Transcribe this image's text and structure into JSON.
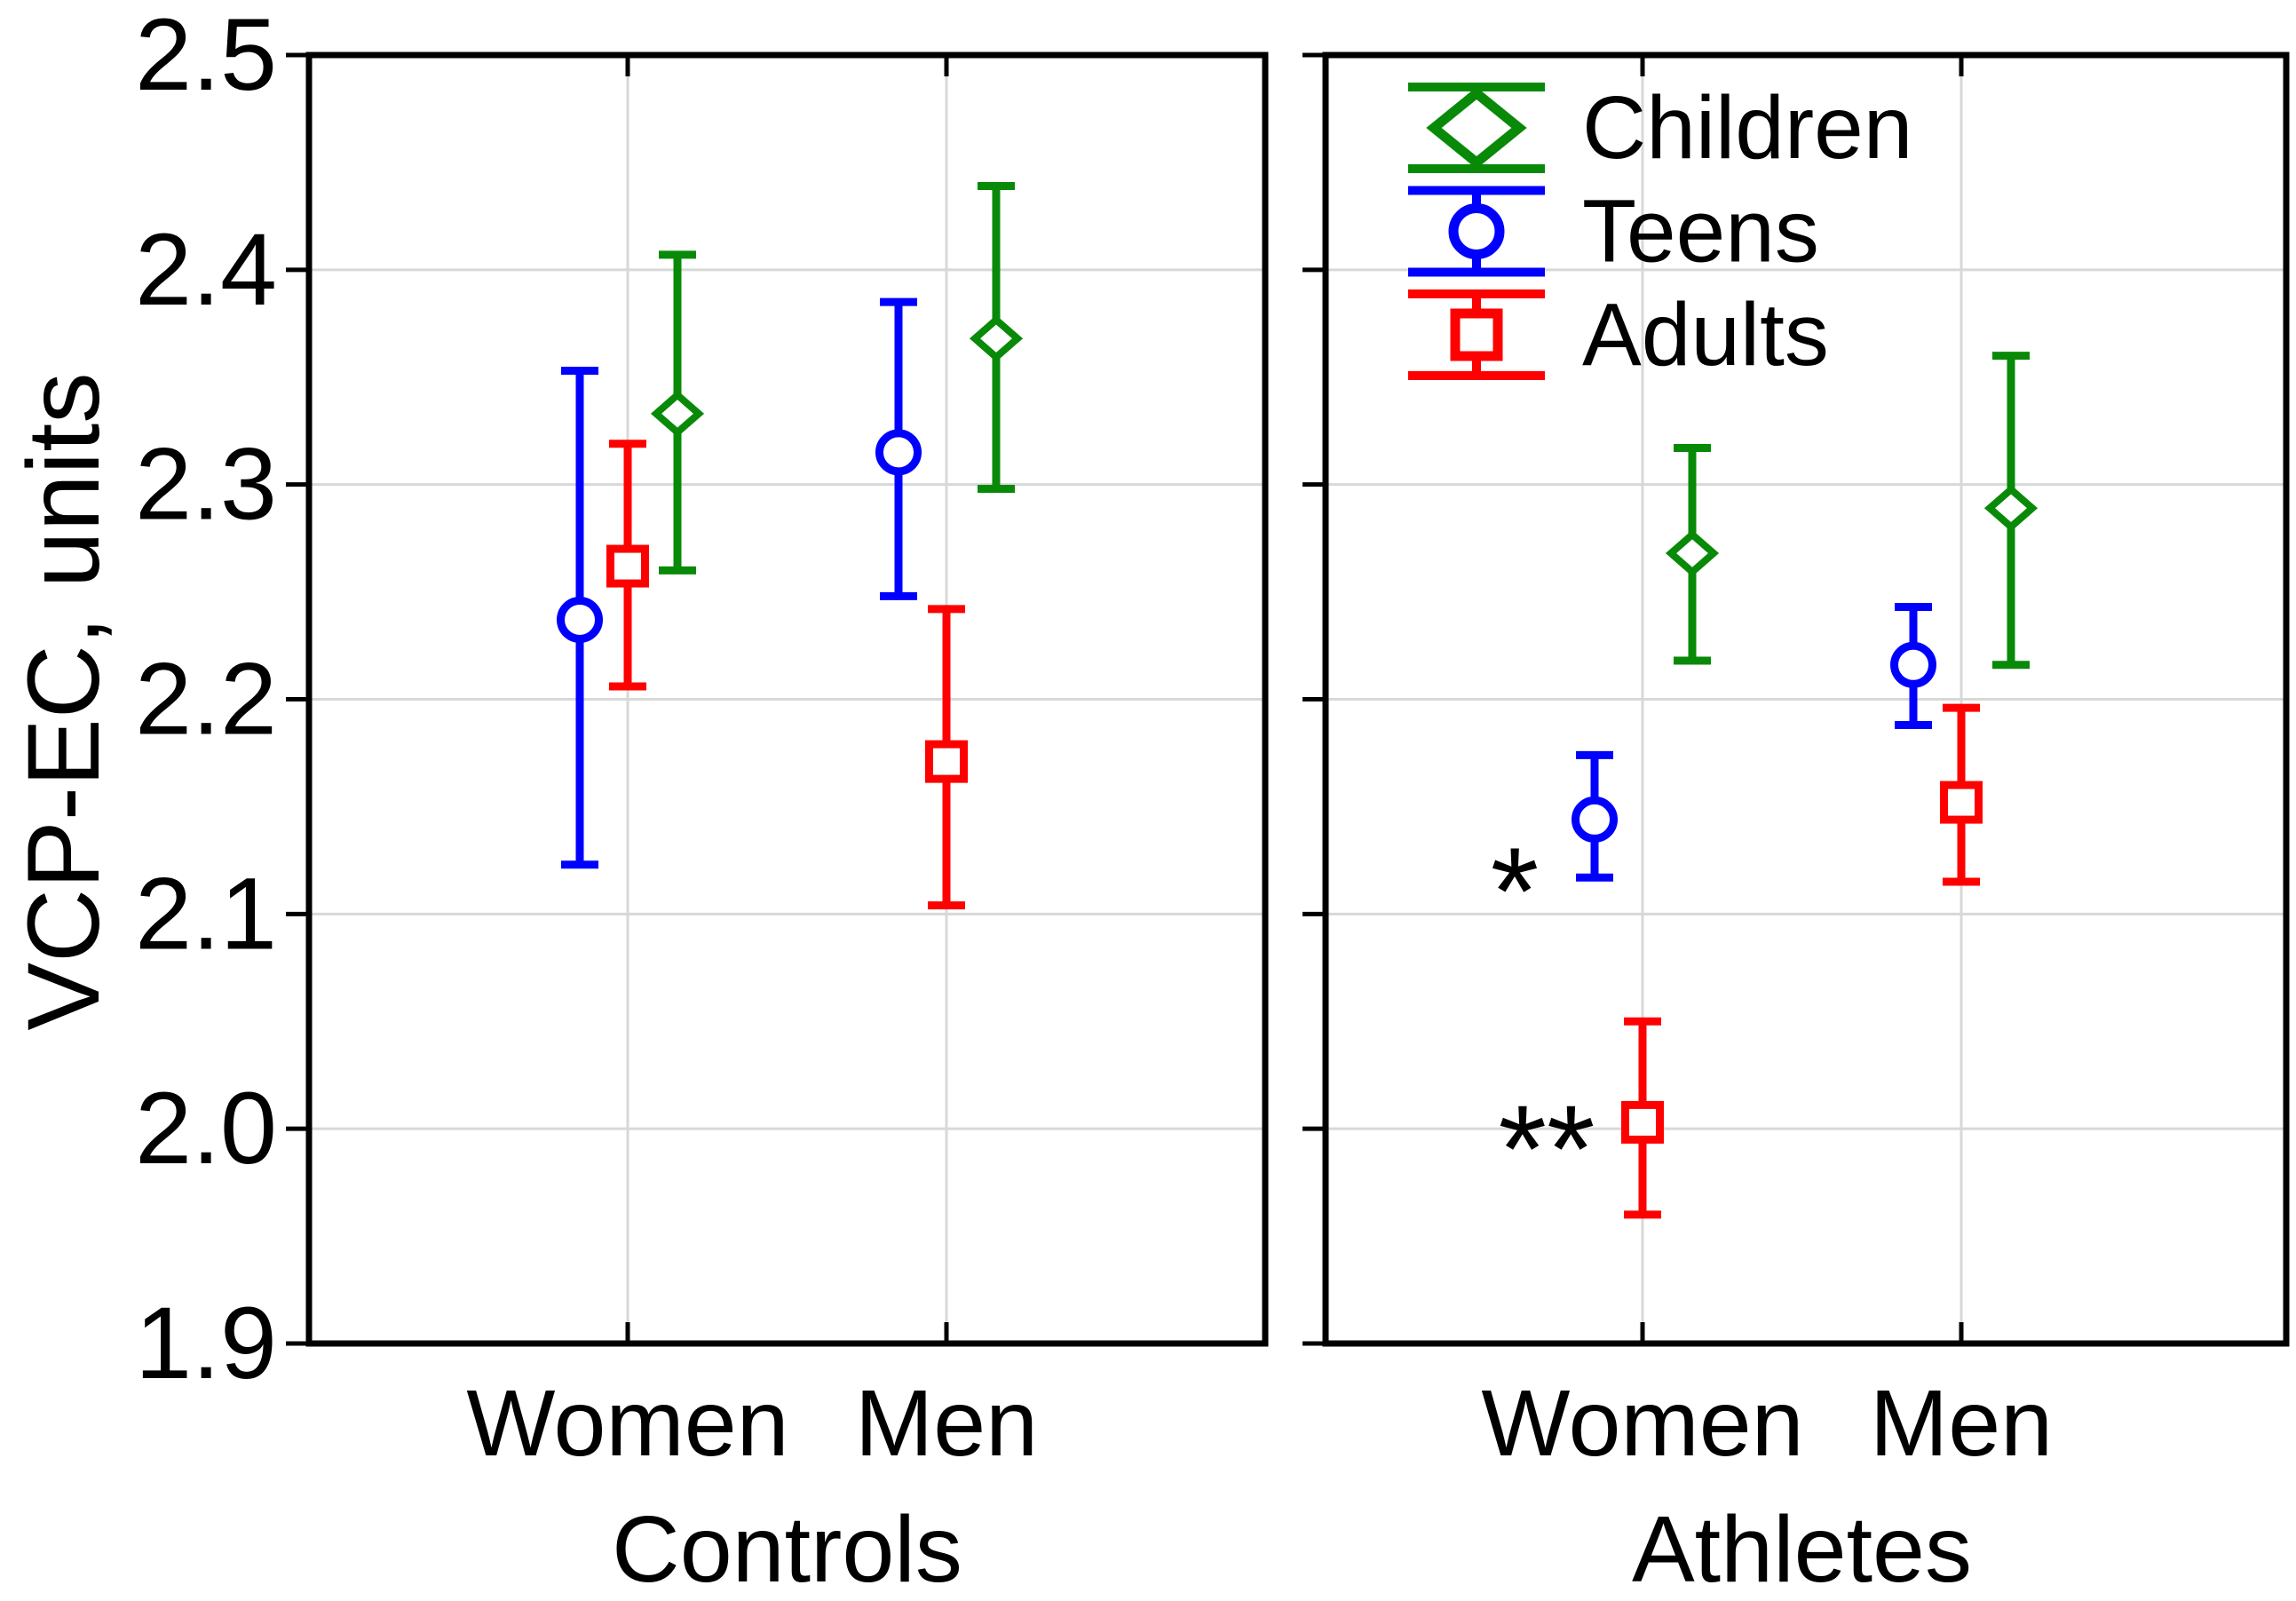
{
  "chart_data": {
    "type": "scatter",
    "subtype": "point-with-error-bars",
    "title": "",
    "ylabel": "VCP-EC, units",
    "ylim": [
      1.9,
      2.5
    ],
    "grid": true,
    "yticks": [
      {
        "value": 2.5,
        "label": "2.5"
      },
      {
        "value": 2.4,
        "label": "2.4"
      },
      {
        "value": 2.3,
        "label": "2.3"
      },
      {
        "value": 2.2,
        "label": "2.2"
      },
      {
        "value": 2.1,
        "label": "2.1"
      },
      {
        "value": 2.0,
        "label": "2.0"
      },
      {
        "value": 1.9,
        "label": "1.9"
      }
    ],
    "panels": [
      {
        "label": "Controls",
        "categories": [
          "Women",
          "Men"
        ]
      },
      {
        "label": "Athletes",
        "categories": [
          "Women",
          "Men"
        ]
      }
    ],
    "legend": {
      "position": "top-left-of-right-panel",
      "entries": [
        "Children",
        "Teens",
        "Adults"
      ]
    },
    "series": [
      {
        "name": "Children",
        "marker": "diamond",
        "color": "#088A08",
        "points": [
          {
            "panel": "Controls",
            "category": "Women",
            "y": 2.333,
            "err_lo": 2.26,
            "err_hi": 2.407
          },
          {
            "panel": "Controls",
            "category": "Men",
            "y": 2.368,
            "err_lo": 2.298,
            "err_hi": 2.439
          },
          {
            "panel": "Athletes",
            "category": "Women",
            "y": 2.268,
            "err_lo": 2.218,
            "err_hi": 2.317
          },
          {
            "panel": "Athletes",
            "category": "Men",
            "y": 2.289,
            "err_lo": 2.216,
            "err_hi": 2.36
          }
        ]
      },
      {
        "name": "Teens",
        "marker": "circle",
        "color": "#0000FF",
        "points": [
          {
            "panel": "Controls",
            "category": "Women",
            "y": 2.237,
            "err_lo": 2.123,
            "err_hi": 2.353
          },
          {
            "panel": "Controls",
            "category": "Men",
            "y": 2.315,
            "err_lo": 2.248,
            "err_hi": 2.385
          },
          {
            "panel": "Athletes",
            "category": "Women",
            "y": 2.144,
            "err_lo": 2.117,
            "err_hi": 2.174
          },
          {
            "panel": "Athletes",
            "category": "Men",
            "y": 2.216,
            "err_lo": 2.188,
            "err_hi": 2.243
          }
        ]
      },
      {
        "name": "Adults",
        "marker": "square",
        "color": "#FF0000",
        "points": [
          {
            "panel": "Controls",
            "category": "Women",
            "y": 2.262,
            "err_lo": 2.206,
            "err_hi": 2.319
          },
          {
            "panel": "Controls",
            "category": "Men",
            "y": 2.171,
            "err_lo": 2.104,
            "err_hi": 2.242
          },
          {
            "panel": "Athletes",
            "category": "Women",
            "y": 2.003,
            "err_lo": 1.96,
            "err_hi": 2.05
          },
          {
            "panel": "Athletes",
            "category": "Men",
            "y": 2.152,
            "err_lo": 2.115,
            "err_hi": 2.196
          }
        ]
      }
    ],
    "annotations": [
      {
        "text": "*",
        "panel": "Athletes",
        "category": "Women",
        "y": 2.12,
        "x_offset": -144
      },
      {
        "text": "**",
        "panel": "Athletes",
        "category": "Women",
        "y": 2.0,
        "x_offset": -108
      }
    ]
  },
  "colors": {
    "background": "#FFFFFF",
    "grid": "#D8D8D8",
    "axis": "#000000",
    "text": "#000000"
  }
}
